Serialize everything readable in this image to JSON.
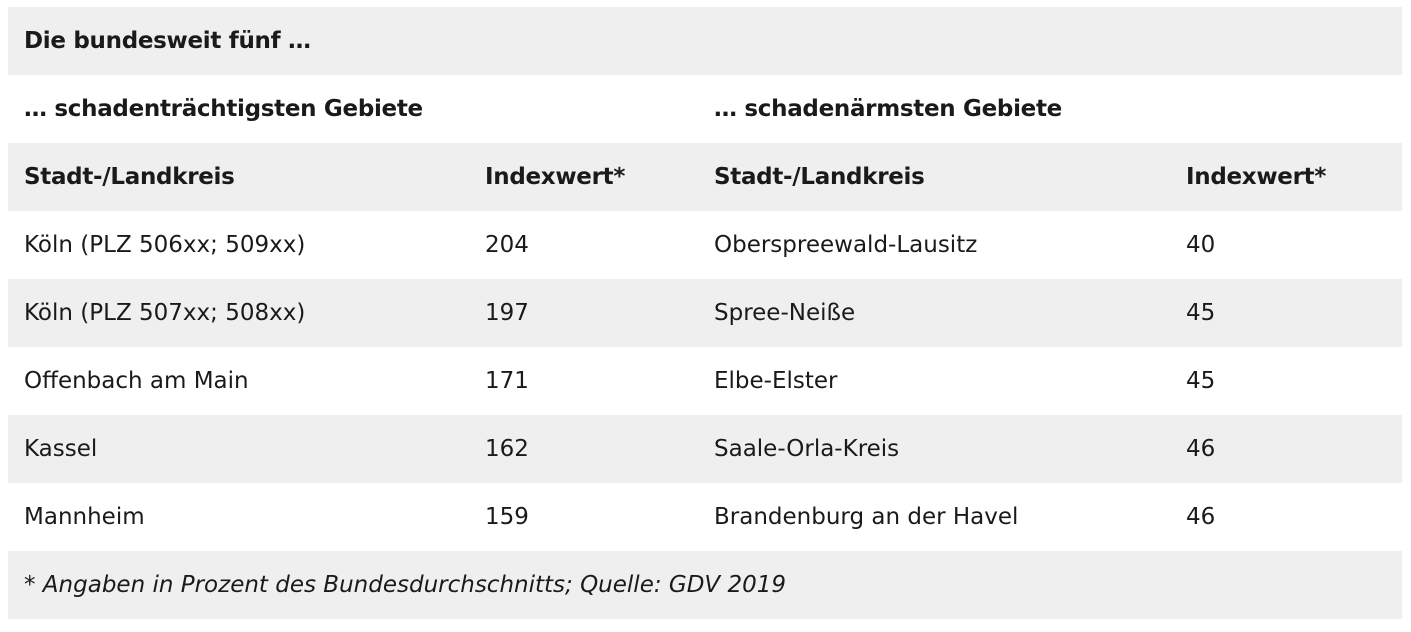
{
  "title": "Die bundesweit fünf …",
  "left_group": "… schadenträchtigsten Gebiete",
  "right_group": "… schadenärmsten Gebiete",
  "columns": {
    "left_name": "Stadt-/Landkreis",
    "left_index": "Indexwert*",
    "right_name": "Stadt-/Landkreis",
    "right_index": "Indexwert*"
  },
  "rows": [
    {
      "left_name": "Köln (PLZ 506xx; 509xx)",
      "left_index": "204",
      "right_name": "Oberspreewald-Lausitz",
      "right_index": "40"
    },
    {
      "left_name": "Köln (PLZ 507xx; 508xx)",
      "left_index": "197",
      "right_name": "Spree-Neiße",
      "right_index": "45"
    },
    {
      "left_name": "Offenbach am Main",
      "left_index": "171",
      "right_name": "Elbe-Elster",
      "right_index": "45"
    },
    {
      "left_name": "Kassel",
      "left_index": "162",
      "right_name": "Saale-Orla-Kreis",
      "right_index": "46"
    },
    {
      "left_name": "Mannheim",
      "left_index": "159",
      "right_name": "Brandenburg an der Havel",
      "right_index": "46"
    }
  ],
  "footnote": "* Angaben in Prozent des Bundesdurchschnitts; Quelle: GDV 2019"
}
